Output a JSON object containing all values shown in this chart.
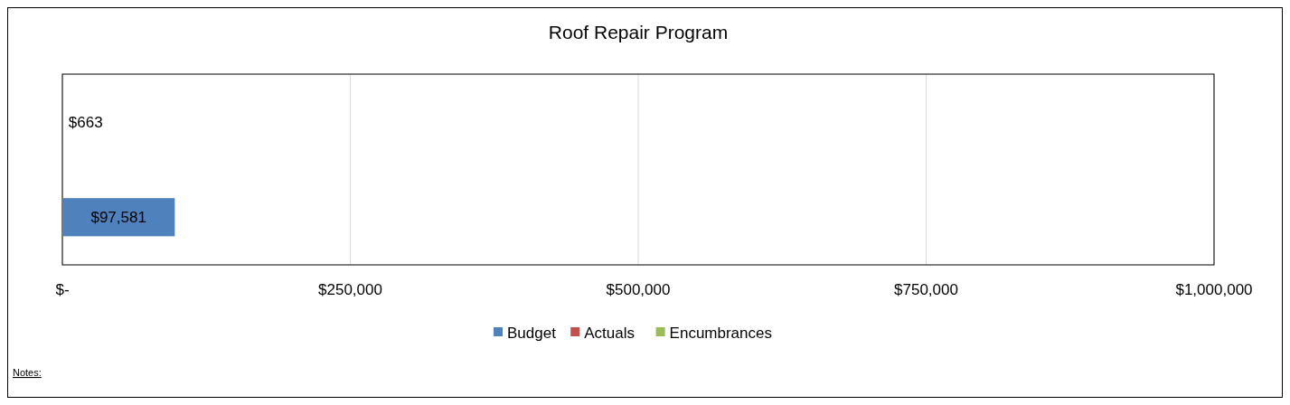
{
  "chart_data": {
    "type": "bar",
    "orientation": "horizontal",
    "title": "Roof Repair Program",
    "categories": [
      null,
      null
    ],
    "series": [
      {
        "name": "Budget",
        "color": "#4f81bd",
        "values": [
          null,
          97581
        ],
        "value_labels": [
          null,
          "$97,581"
        ]
      },
      {
        "name": "Actuals",
        "color": "#c0504d",
        "values": [
          663,
          null
        ],
        "value_labels": [
          "$663",
          null
        ]
      },
      {
        "name": "Encumbrances",
        "color": "#9bbb59",
        "values": [
          null,
          null
        ]
      }
    ],
    "xlim": [
      0,
      1000000
    ],
    "xticks": [
      {
        "value": 0,
        "label": "$-"
      },
      {
        "value": 250000,
        "label": "$250,000"
      },
      {
        "value": 500000,
        "label": "$500,000"
      },
      {
        "value": 750000,
        "label": "$750,000"
      },
      {
        "value": 1000000,
        "label": "$1,000,000"
      }
    ],
    "grid": "x",
    "legend": "bottom",
    "annotations": [
      "Notes:"
    ]
  }
}
